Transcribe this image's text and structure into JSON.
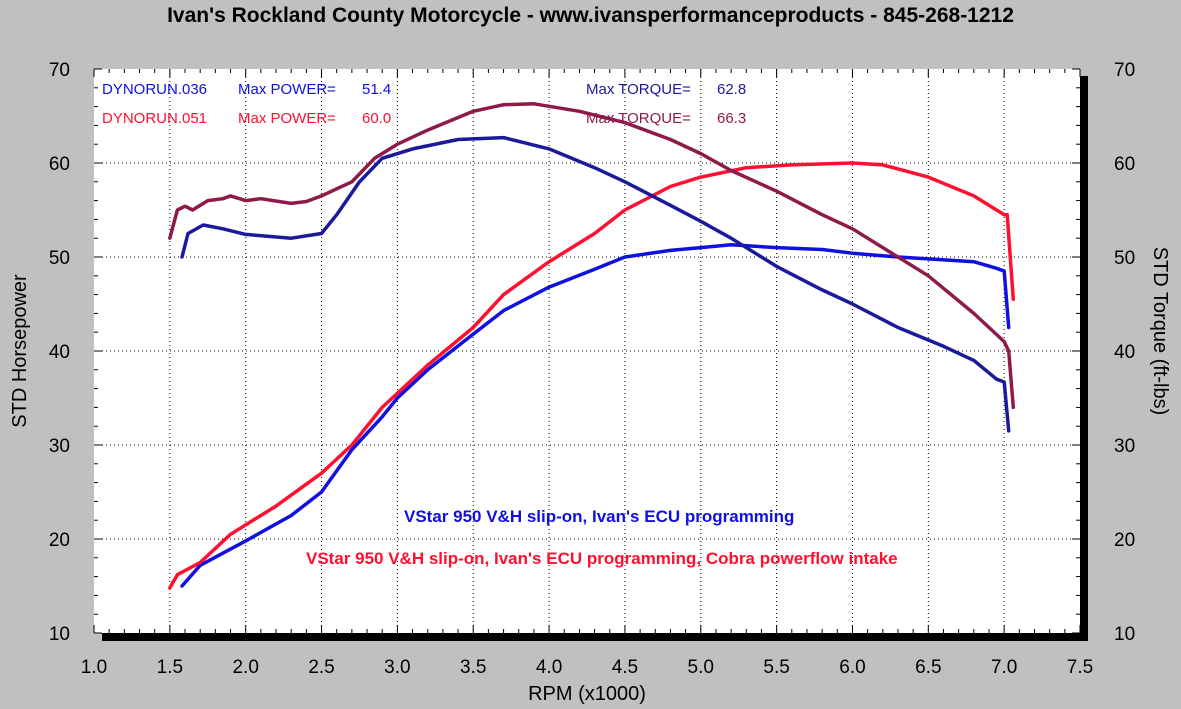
{
  "title": "Ivan's Rockland County Motorcycle - www.ivansperformanceproducts - 845-268-1212",
  "chart_data": {
    "type": "line",
    "xlabel": "RPM (x1000)",
    "ylabel_left": "STD Horsepower",
    "ylabel_right": "STD Torque (ft-lbs)",
    "xlim": [
      1.0,
      7.5
    ],
    "ylim": [
      10,
      70
    ],
    "xticks": [
      "1.0",
      "1.5",
      "2.0",
      "2.5",
      "3.0",
      "3.5",
      "4.0",
      "4.5",
      "5.0",
      "5.5",
      "6.0",
      "6.5",
      "7.0",
      "7.5"
    ],
    "yticks": [
      "10",
      "20",
      "30",
      "40",
      "50",
      "60",
      "70"
    ],
    "grid": true,
    "legend": [
      {
        "run": "DYNORUN.036",
        "power_label": "Max POWER=",
        "power_value": "51.4",
        "torque_label": "Max TORQUE=",
        "torque_value": "62.8",
        "color": "#1010e0"
      },
      {
        "run": "DYNORUN.051",
        "power_label": "Max POWER=",
        "power_value": "60.0",
        "torque_label": "Max TORQUE=",
        "torque_value": "66.3",
        "color": "#ff1030"
      }
    ],
    "annotations": [
      {
        "text": "VStar 950 V&H slip-on, Ivan's ECU programming",
        "color": "#1010e0"
      },
      {
        "text": "VStar 950 V&H slip-on, Ivan's ECU programming, Cobra powerflow intake",
        "color": "#ff1030"
      }
    ],
    "series": [
      {
        "name": "DYNORUN.036 Horsepower",
        "color": "#1010e0",
        "points": [
          [
            1.58,
            15.0
          ],
          [
            1.7,
            17.2
          ],
          [
            2.0,
            19.8
          ],
          [
            2.3,
            22.5
          ],
          [
            2.5,
            25.0
          ],
          [
            2.7,
            29.5
          ],
          [
            2.9,
            33.0
          ],
          [
            3.0,
            35.0
          ],
          [
            3.2,
            38.0
          ],
          [
            3.5,
            41.8
          ],
          [
            3.7,
            44.3
          ],
          [
            4.0,
            46.8
          ],
          [
            4.3,
            48.7
          ],
          [
            4.5,
            50.0
          ],
          [
            4.8,
            50.7
          ],
          [
            5.0,
            51.0
          ],
          [
            5.2,
            51.3
          ],
          [
            5.5,
            51.0
          ],
          [
            5.8,
            50.8
          ],
          [
            6.0,
            50.4
          ],
          [
            6.3,
            50.0
          ],
          [
            6.5,
            49.8
          ],
          [
            6.8,
            49.5
          ],
          [
            6.95,
            48.8
          ],
          [
            7.0,
            48.5
          ],
          [
            7.03,
            42.5
          ]
        ]
      },
      {
        "name": "DYNORUN.051 Horsepower",
        "color": "#ff1030",
        "points": [
          [
            1.5,
            14.8
          ],
          [
            1.55,
            16.2
          ],
          [
            1.7,
            17.5
          ],
          [
            1.9,
            20.5
          ],
          [
            2.2,
            23.5
          ],
          [
            2.5,
            27.0
          ],
          [
            2.7,
            30.0
          ],
          [
            2.9,
            34.0
          ],
          [
            3.0,
            35.5
          ],
          [
            3.2,
            38.5
          ],
          [
            3.5,
            42.5
          ],
          [
            3.7,
            46.0
          ],
          [
            4.0,
            49.5
          ],
          [
            4.3,
            52.5
          ],
          [
            4.5,
            55.0
          ],
          [
            4.8,
            57.5
          ],
          [
            5.0,
            58.5
          ],
          [
            5.3,
            59.5
          ],
          [
            5.6,
            59.8
          ],
          [
            6.0,
            60.0
          ],
          [
            6.2,
            59.8
          ],
          [
            6.5,
            58.5
          ],
          [
            6.8,
            56.5
          ],
          [
            7.0,
            54.5
          ],
          [
            7.02,
            54.5
          ],
          [
            7.06,
            45.5
          ]
        ]
      },
      {
        "name": "DYNORUN.036 Torque",
        "color": "#1a1a9a",
        "points": [
          [
            1.58,
            50.0
          ],
          [
            1.62,
            52.5
          ],
          [
            1.72,
            53.4
          ],
          [
            1.85,
            53.0
          ],
          [
            2.0,
            52.4
          ],
          [
            2.3,
            52.0
          ],
          [
            2.5,
            52.5
          ],
          [
            2.6,
            54.5
          ],
          [
            2.75,
            58.0
          ],
          [
            2.9,
            60.5
          ],
          [
            3.1,
            61.5
          ],
          [
            3.4,
            62.5
          ],
          [
            3.7,
            62.7
          ],
          [
            4.0,
            61.5
          ],
          [
            4.3,
            59.5
          ],
          [
            4.5,
            58.0
          ],
          [
            4.8,
            55.5
          ],
          [
            5.0,
            53.8
          ],
          [
            5.2,
            52.0
          ],
          [
            5.5,
            49.0
          ],
          [
            5.8,
            46.5
          ],
          [
            6.0,
            45.0
          ],
          [
            6.3,
            42.5
          ],
          [
            6.6,
            40.5
          ],
          [
            6.8,
            39.0
          ],
          [
            6.95,
            37.0
          ],
          [
            7.0,
            36.7
          ],
          [
            7.03,
            31.5
          ]
        ]
      },
      {
        "name": "DYNORUN.051 Torque",
        "color": "#8e1a4a",
        "points": [
          [
            1.5,
            52.0
          ],
          [
            1.55,
            55.0
          ],
          [
            1.6,
            55.4
          ],
          [
            1.65,
            55.0
          ],
          [
            1.75,
            56.0
          ],
          [
            1.85,
            56.2
          ],
          [
            1.9,
            56.5
          ],
          [
            2.0,
            56.0
          ],
          [
            2.1,
            56.2
          ],
          [
            2.3,
            55.7
          ],
          [
            2.4,
            55.9
          ],
          [
            2.5,
            56.5
          ],
          [
            2.7,
            58.0
          ],
          [
            2.85,
            60.5
          ],
          [
            3.0,
            62.0
          ],
          [
            3.2,
            63.5
          ],
          [
            3.5,
            65.5
          ],
          [
            3.7,
            66.2
          ],
          [
            3.9,
            66.3
          ],
          [
            4.2,
            65.5
          ],
          [
            4.5,
            64.3
          ],
          [
            4.8,
            62.5
          ],
          [
            5.0,
            61.0
          ],
          [
            5.2,
            59.2
          ],
          [
            5.5,
            57.0
          ],
          [
            5.8,
            54.5
          ],
          [
            6.0,
            53.0
          ],
          [
            6.2,
            51.0
          ],
          [
            6.5,
            48.0
          ],
          [
            6.8,
            44.0
          ],
          [
            7.0,
            41.0
          ],
          [
            7.03,
            40.0
          ],
          [
            7.06,
            34.0
          ]
        ]
      }
    ]
  }
}
